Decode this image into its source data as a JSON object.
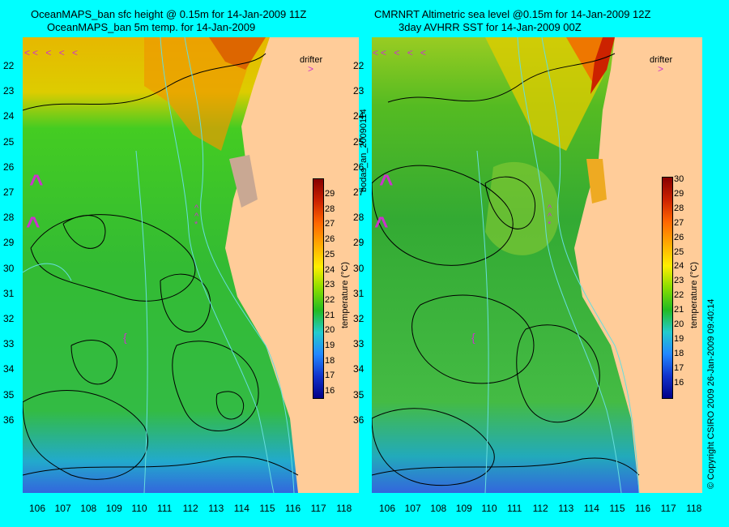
{
  "left_panel": {
    "title_line1": "OceanMAPS_ban sfc height @ 0.15m for 14-Jan-2009 11Z",
    "title_line2": "OceanMAPS_ban 5m temp. for 14-Jan-2009",
    "drifter_label": "drifter",
    "colorbar": {
      "ticks": [
        "29",
        "28",
        "27",
        "26",
        "25",
        "24",
        "23",
        "22",
        "21",
        "20",
        "19",
        "18",
        "17",
        "16"
      ],
      "label": "temperature (°C)"
    }
  },
  "right_panel": {
    "title_line1": "CMRNRT Altimetric sea level  @0.15m  for 14-Jan-2009 12Z",
    "title_line2": "3day AVHRR SST for 14-Jan-2009 00Z",
    "drifter_label": "drifter",
    "colorbar": {
      "ticks": [
        "30",
        "29",
        "28",
        "27",
        "26",
        "25",
        "24",
        "23",
        "22",
        "21",
        "20",
        "19",
        "18",
        "17",
        "16"
      ],
      "label": "temperature (°C)"
    }
  },
  "lat_ticks": [
    "22",
    "23",
    "24",
    "25",
    "26",
    "27",
    "28",
    "29",
    "30",
    "31",
    "32",
    "33",
    "34",
    "35",
    "36"
  ],
  "lon_ticks": [
    "106",
    "107",
    "108",
    "109",
    "110",
    "111",
    "112",
    "113",
    "114",
    "115",
    "116",
    "117",
    "118"
  ],
  "side_label": "bodas_an_20090114",
  "copyright": "© Copyright CSIRO 2009   26-Jan-2009 09:40:14",
  "colors": {
    "background": "#00ffff",
    "land": "#ffcc99",
    "sea_green": "#33bb33",
    "warm_orange": "#ee9900",
    "contour": "#000000",
    "isobath": "#66dddd",
    "drifter_arrow": "#cc33cc"
  }
}
